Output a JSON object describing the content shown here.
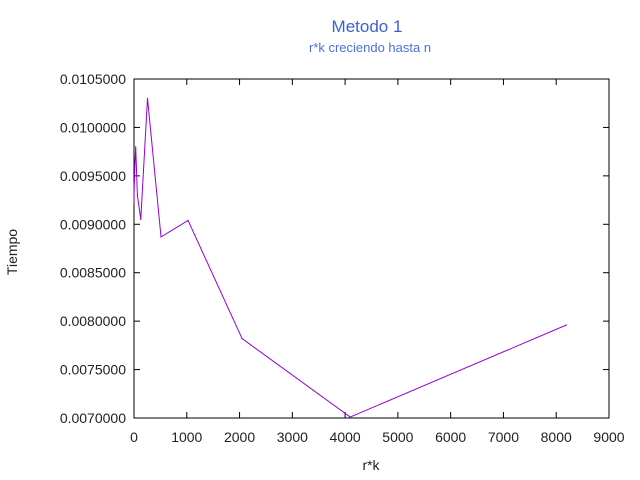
{
  "colors": {
    "title": "#3a5fd9",
    "subtitle": "#4a6fe0",
    "series": "#9400d3",
    "axis": "#000000"
  },
  "chart_data": {
    "type": "line",
    "title": "Metodo 1",
    "subtitle": "r*k creciendo hasta n",
    "xlabel": "r*k",
    "ylabel": "Tiempo",
    "xlim": [
      0,
      9000
    ],
    "ylim": [
      0.007,
      0.0105
    ],
    "xticks": [
      "0",
      "1000",
      "2000",
      "3000",
      "4000",
      "5000",
      "6000",
      "7000",
      "8000",
      "9000"
    ],
    "yticks": [
      "0.0070000",
      "0.0075000",
      "0.0080000",
      "0.0085000",
      "0.0090000",
      "0.0095000",
      "0.0100000",
      "0.0105000"
    ],
    "grid": false,
    "legend": "none",
    "series": [
      {
        "x": [
          1,
          2,
          4,
          8,
          16,
          32,
          64,
          128,
          256,
          512,
          1024,
          2048,
          4096,
          8192
        ],
        "y": [
          0.00922,
          0.00935,
          0.0094,
          0.00945,
          0.0096,
          0.0098,
          0.0093,
          0.00905,
          0.0103,
          0.00887,
          0.00904,
          0.00782,
          0.00701,
          0.00796
        ]
      }
    ]
  }
}
